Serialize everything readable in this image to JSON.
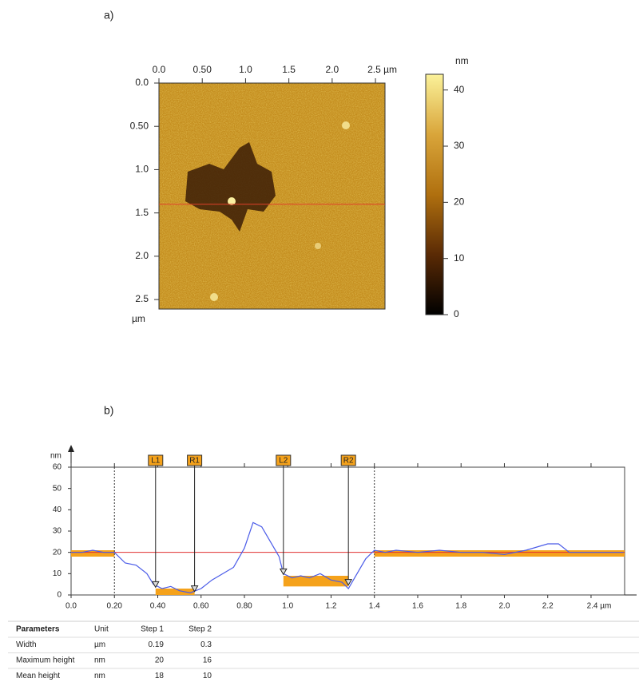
{
  "panel_labels": [
    "a)",
    "b)"
  ],
  "chart_data": [
    {
      "type": "image",
      "xlim": [
        0,
        2.61
      ],
      "ylim": [
        0,
        2.61
      ],
      "xticks": [
        {
          "value": 0,
          "label": "0.0"
        },
        {
          "value": 0.5,
          "label": "0.50"
        },
        {
          "value": 1,
          "label": "1.0"
        },
        1.5,
        {
          "value": 2,
          "label": "2.0"
        },
        {
          "value": 2.5,
          "label": "2.5 µm"
        }
      ],
      "yticks": [
        {
          "value": 0,
          "label": "0.0"
        },
        {
          "value": 0.5,
          "label": "0.50"
        },
        {
          "value": 1,
          "label": "1.0"
        },
        1.5,
        {
          "value": 2,
          "label": "2.0"
        },
        2.5
      ],
      "ylabel": "µm",
      "profile_y": 1.4,
      "profile_color": "#e0402a",
      "colorbar": {
        "label": "nm",
        "lim": [
          0,
          42.8
        ],
        "ticks": [
          0,
          10,
          20,
          30,
          40
        ],
        "colors": [
          "#000000",
          "#5a2a05",
          "#b0700f",
          "#d9a53a",
          "#fbf29a"
        ]
      }
    },
    {
      "type": "line",
      "ylabel": "nm",
      "xlim": [
        0,
        2.555
      ],
      "ylim": [
        0,
        60
      ],
      "xticks": [
        {
          "value": 0,
          "label": "0.0"
        },
        {
          "value": 0.2,
          "label": "0.20"
        },
        {
          "value": 0.4,
          "label": "0.40"
        },
        {
          "value": 0.6,
          "label": "0.60"
        },
        {
          "value": 0.8,
          "label": "0.80"
        },
        {
          "value": 1,
          "label": "1.0"
        },
        1.2,
        1.4,
        1.6,
        1.8,
        {
          "value": 2,
          "label": "2.0"
        },
        2.2,
        {
          "value": 2.4,
          "label": "2.4 µm"
        }
      ],
      "yticks": [
        0,
        10,
        20,
        30,
        40,
        50,
        60
      ],
      "x": [
        0,
        0.05,
        0.1,
        0.15,
        0.2,
        0.25,
        0.3,
        0.35,
        0.38,
        0.42,
        0.46,
        0.5,
        0.55,
        0.6,
        0.65,
        0.7,
        0.75,
        0.8,
        0.84,
        0.88,
        0.92,
        0.96,
        0.98,
        1.02,
        1.06,
        1.1,
        1.15,
        1.2,
        1.25,
        1.28,
        1.32,
        1.36,
        1.4,
        1.45,
        1.5,
        1.6,
        1.7,
        1.8,
        1.9,
        2.0,
        2.1,
        2.2,
        2.25,
        2.3,
        2.4,
        2.5,
        2.55
      ],
      "series": [
        {
          "color": "#4a5be8",
          "values": [
            20,
            20,
            21,
            20,
            20,
            15,
            14,
            10,
            5,
            3,
            4,
            2,
            1,
            3,
            7,
            10,
            13,
            22,
            34,
            32,
            25,
            18,
            10,
            8,
            9,
            8,
            10,
            7,
            6,
            3,
            10,
            17,
            21,
            20,
            21,
            20,
            21,
            20,
            20,
            19,
            21,
            24,
            24,
            20,
            20,
            20,
            20
          ]
        }
      ],
      "reference": 20,
      "reference_color": "#e03030",
      "dividers": [
        0.2,
        1.4
      ],
      "region_color": "#f5a21b",
      "regions": [
        {
          "x": [
            0,
            0.2
          ],
          "y": [
            18,
            21
          ]
        },
        {
          "x": [
            0.39,
            0.57
          ],
          "y": [
            0,
            3
          ]
        },
        {
          "x": [
            0.98,
            1.28
          ],
          "y": [
            4,
            9
          ]
        },
        {
          "x": [
            1.4,
            2.555
          ],
          "y": [
            18,
            21
          ]
        }
      ],
      "cursors": [
        {
          "name": "L1",
          "x": 0.39,
          "y": 4
        },
        {
          "name": "R1",
          "x": 0.57,
          "y": 2
        },
        {
          "name": "L2",
          "x": 0.98,
          "y": 10
        },
        {
          "name": "R2",
          "x": 1.28,
          "y": 5
        }
      ]
    }
  ],
  "table": {
    "header": [
      "Parameters",
      "Unit",
      "Step 1",
      "Step 2"
    ],
    "rows": [
      [
        "Width",
        "µm",
        0.19,
        0.3
      ],
      [
        "Maximum height",
        "nm",
        20,
        16
      ],
      [
        "Mean height",
        "nm",
        18,
        10
      ]
    ]
  }
}
